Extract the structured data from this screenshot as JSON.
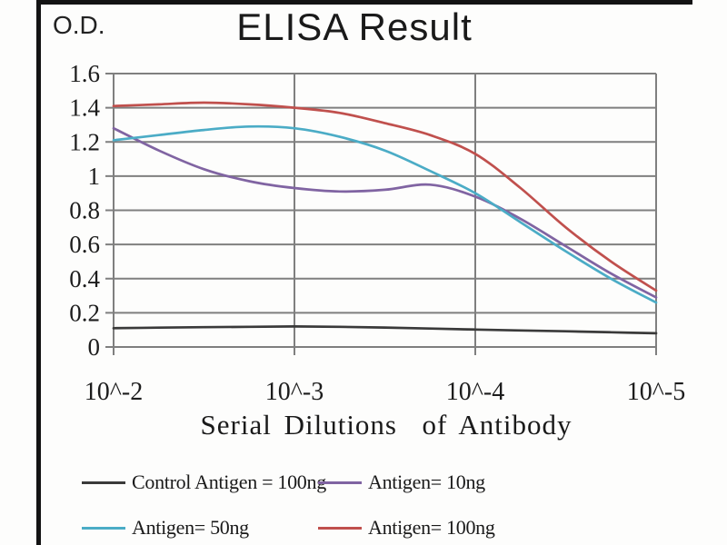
{
  "chart_data": {
    "type": "line",
    "title": "ELISA Result",
    "ylabel": "O.D.",
    "xlabel": "Serial Dilutions  of Antibody",
    "x_tick_labels": [
      "10^-2",
      "10^-3",
      "10^-4",
      "10^-5"
    ],
    "y_tick_labels": [
      "0",
      "0.2",
      "0.4",
      "0.6",
      "0.8",
      "1",
      "1.2",
      "1.4",
      "1.6"
    ],
    "ylim": [
      0,
      1.6
    ],
    "x_axis_log10_range": [
      -2,
      -5
    ],
    "grid": true,
    "legend_position": "bottom",
    "axis_color": "#7f7f7f",
    "frame_border_color": "#131313",
    "x_decades": [
      0,
      0.25,
      0.5,
      0.75,
      1,
      1.25,
      1.5,
      1.75,
      2,
      2.25,
      2.5,
      2.75,
      3
    ],
    "series": [
      {
        "name": "Control Antigen = 100ng",
        "color": "#3a3a3a",
        "values": [
          0.11,
          0.113,
          0.116,
          0.118,
          0.12,
          0.118,
          0.114,
          0.108,
          0.102,
          0.097,
          0.092,
          0.086,
          0.08
        ]
      },
      {
        "name": "Antigen= 10ng",
        "color": "#8064a2",
        "values": [
          1.28,
          1.15,
          1.04,
          0.97,
          0.93,
          0.91,
          0.92,
          0.95,
          0.88,
          0.75,
          0.59,
          0.43,
          0.29
        ]
      },
      {
        "name": "Antigen= 50ng",
        "color": "#4bacc6",
        "values": [
          1.21,
          1.24,
          1.27,
          1.29,
          1.28,
          1.23,
          1.15,
          1.03,
          0.9,
          0.73,
          0.56,
          0.4,
          0.26
        ]
      },
      {
        "name": "Antigen= 100ng",
        "color": "#c0504d",
        "values": [
          1.41,
          1.42,
          1.43,
          1.42,
          1.4,
          1.37,
          1.31,
          1.24,
          1.13,
          0.93,
          0.7,
          0.5,
          0.33
        ]
      }
    ]
  }
}
